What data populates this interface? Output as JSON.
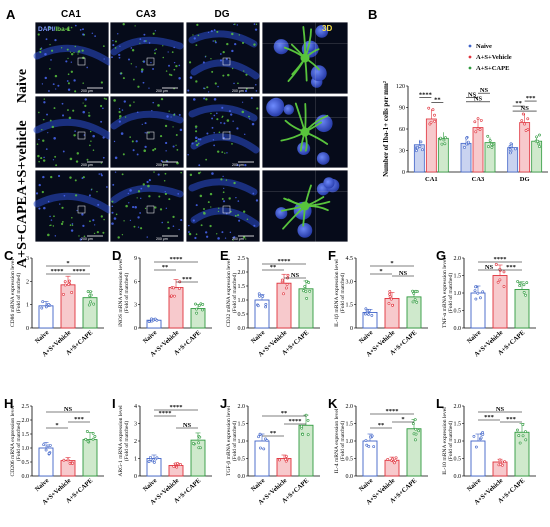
{
  "figure": {
    "panel_a": {
      "label": "A",
      "stain_dapi": "DAPI/",
      "stain_iba": "Iba-1",
      "columns": [
        "CA1",
        "CA3",
        "DG"
      ],
      "rows": [
        "Naive",
        "A+S+vehicle",
        "A+S+CAPE"
      ],
      "label_3d": "3D",
      "scale_text": "200 μm"
    },
    "panel_b_label": "B",
    "panel_labels_row2": [
      "C",
      "D",
      "E",
      "F",
      "G"
    ],
    "panel_labels_row3": [
      "H",
      "I",
      "J",
      "K",
      "L"
    ]
  },
  "colors": {
    "naive": "#3f63c8",
    "vehicle": "#e0323c",
    "cape": "#2f9a3e",
    "vehicle_fill": "#f7c9cc",
    "cape_fill": "#cfe9cc",
    "naive_fill": "#c9d3f0",
    "micro_bg": "#060b1a",
    "microglia": "#58c43c",
    "nuclei": "#3a5ad8"
  },
  "chart_data": [
    {
      "id": "B",
      "type": "bar",
      "categories": [
        "CA1",
        "CA3",
        "DG"
      ],
      "series": [
        {
          "name": "Naive",
          "values": [
            38,
            40,
            34
          ]
        },
        {
          "name": "A+S+Vehicle",
          "values": [
            74,
            62,
            69
          ]
        },
        {
          "name": "A+S+CAPE",
          "values": [
            47,
            41,
            43
          ]
        }
      ],
      "ylabel": "Number of Iba-1+ cells per mm²",
      "ylim": [
        0,
        120
      ],
      "yticks": [
        "0",
        "30",
        "60",
        "90",
        "120"
      ],
      "legend": "top-right",
      "sig": [
        "****",
        "**",
        "NS",
        "NS",
        "NS",
        "NS",
        "**",
        "***"
      ]
    },
    {
      "id": "C",
      "type": "bar",
      "categories": [
        "Naive",
        "A+S+Vehicle",
        "A+S+CAPE"
      ],
      "values": [
        0.95,
        1.85,
        1.3
      ],
      "ylabel": "CD86 mRNA expression level",
      "ylabel2": "(Fold of matched)",
      "ylim": [
        0,
        3
      ],
      "yticks": [
        "0",
        "1",
        "2",
        "3"
      ],
      "sig": [
        "****",
        "*",
        "****"
      ]
    },
    {
      "id": "D",
      "type": "bar",
      "categories": [
        "Naive",
        "A+S+Vehicle",
        "A+S+CAPE"
      ],
      "values": [
        1.0,
        5.2,
        2.5
      ],
      "ylabel": "iNOS mRNA expression level",
      "ylabel2": "(Fold of matched)",
      "ylim": [
        0,
        9
      ],
      "yticks": [
        "0",
        "3",
        "6",
        "9"
      ],
      "sig": [
        "**",
        "****",
        "***"
      ]
    },
    {
      "id": "E",
      "type": "bar",
      "categories": [
        "Naive",
        "A+S+Vehicle",
        "A+S+CAPE"
      ],
      "values": [
        1.0,
        1.6,
        1.4
      ],
      "ylabel": "CD32 mRNA expression level",
      "ylabel2": "(Fold of matched)",
      "ylim": [
        0,
        2.5
      ],
      "yticks": [
        "0.0",
        "0.5",
        "1.0",
        "1.5",
        "2.0",
        "2.5"
      ],
      "sig": [
        "**",
        "****",
        "NS"
      ]
    },
    {
      "id": "F",
      "type": "bar",
      "categories": [
        "Naive",
        "A+S+Vehicle",
        "A+S+CAPE"
      ],
      "values": [
        1.0,
        1.9,
        2.0
      ],
      "ylabel": "IL-1β mRNA expression level",
      "ylabel2": "(Fold of matched)",
      "ylim": [
        0,
        4.5
      ],
      "yticks": [
        "0",
        "1.5",
        "3.0",
        "4.5"
      ],
      "sig": [
        "*",
        "*",
        "NS"
      ]
    },
    {
      "id": "G",
      "type": "bar",
      "categories": [
        "Naive",
        "A+S+Vehicle",
        "A+S+CAPE"
      ],
      "values": [
        1.0,
        1.5,
        1.1
      ],
      "ylabel": "TNF-α mRNA expression level",
      "ylabel2": "(Fold of matched)",
      "ylim": [
        0,
        2.0
      ],
      "yticks": [
        "0.0",
        "0.5",
        "1.0",
        "1.5",
        "2.0"
      ],
      "sig": [
        "NS",
        "****",
        "***"
      ]
    },
    {
      "id": "H",
      "type": "bar",
      "categories": [
        "Naive",
        "A+S+Vehicle",
        "A+S+CAPE"
      ],
      "values": [
        1.0,
        0.55,
        1.3
      ],
      "ylabel": "CD206 mRNA expression level",
      "ylabel2": "(Fold of matched)",
      "ylim": [
        0,
        2.5
      ],
      "yticks": [
        "0.0",
        "0.5",
        "1.0",
        "1.5",
        "2.0",
        "2.5"
      ],
      "sig": [
        "NS",
        "*",
        "***"
      ]
    },
    {
      "id": "I",
      "type": "bar",
      "categories": [
        "Naive",
        "A+S+Vehicle",
        "A+S+CAPE"
      ],
      "values": [
        1.0,
        0.6,
        2.05
      ],
      "ylabel": "ARG-1 mRNA expression level",
      "ylabel2": "(Fold of matched)",
      "ylim": [
        0,
        4
      ],
      "yticks": [
        "0",
        "1",
        "2",
        "3",
        "4"
      ],
      "sig": [
        "****",
        "****",
        "NS"
      ]
    },
    {
      "id": "J",
      "type": "bar",
      "categories": [
        "Naive",
        "A+S+Vehicle",
        "A+S+CAPE"
      ],
      "values": [
        1.0,
        0.5,
        1.45
      ],
      "ylabel": "TGF-β mRNA expression level",
      "ylabel2": "(Fold of matched)",
      "ylim": [
        0,
        2.0
      ],
      "yticks": [
        "0.0",
        "0.5",
        "1.0",
        "1.5",
        "2.0"
      ],
      "sig": [
        "**",
        "**",
        "****"
      ]
    },
    {
      "id": "K",
      "type": "bar",
      "categories": [
        "Naive",
        "A+S+Vehicle",
        "A+S+CAPE"
      ],
      "values": [
        1.0,
        0.45,
        1.35
      ],
      "ylabel": "IL-4 mRNA expression level",
      "ylabel2": "(Fold of matched)",
      "ylim": [
        0,
        2.0
      ],
      "yticks": [
        "0.0",
        "0.5",
        "1.0",
        "1.5",
        "2.0"
      ],
      "sig": [
        "****",
        "**",
        "*"
      ]
    },
    {
      "id": "L",
      "type": "bar",
      "categories": [
        "Naive",
        "A+S+Vehicle",
        "A+S+CAPE"
      ],
      "values": [
        1.0,
        0.4,
        1.25
      ],
      "ylabel": "IL-10 mRNA expression level",
      "ylabel2": "(Fold of matched)",
      "ylim": [
        0,
        2.0
      ],
      "yticks": [
        "0.0",
        "0.5",
        "1.0",
        "1.5",
        "2.0"
      ],
      "sig": [
        "NS",
        "***",
        "***"
      ]
    }
  ]
}
